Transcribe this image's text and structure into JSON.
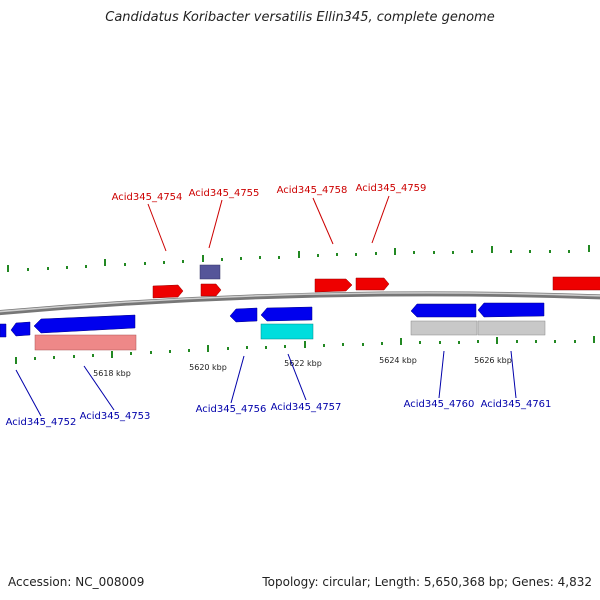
{
  "title": "Candidatus Koribacter versatilis Ellin345, complete genome",
  "footer": {
    "accession": "Accession: NC_008009",
    "summary": "Topology: circular; Length: 5,650,368 bp; Genes: 4,832"
  },
  "colors": {
    "forward_cds": "#ee0000",
    "reverse_cds": "#0000ee",
    "forward_label": "#cc0000",
    "reverse_label": "#0000aa",
    "backbone": "#888888",
    "tick": "#228822",
    "purple_feature": "#555599",
    "cyan_feature": "#00dddd",
    "grey_feature": "#c8c8c8",
    "pink_feature": "#ee8888"
  },
  "axis": {
    "ticks": [
      "5618 kbp",
      "5620 kbp",
      "5622 kbp",
      "5624 kbp",
      "5626 kbp"
    ]
  },
  "labels": {
    "top": [
      "Acid345_4754",
      "Acid345_4755",
      "Acid345_4758",
      "Acid345_4759"
    ],
    "bottom": [
      "Acid345_4752",
      "Acid345_4753",
      "Acid345_4756",
      "Acid345_4757",
      "Acid345_4760",
      "Acid345_4761"
    ]
  }
}
